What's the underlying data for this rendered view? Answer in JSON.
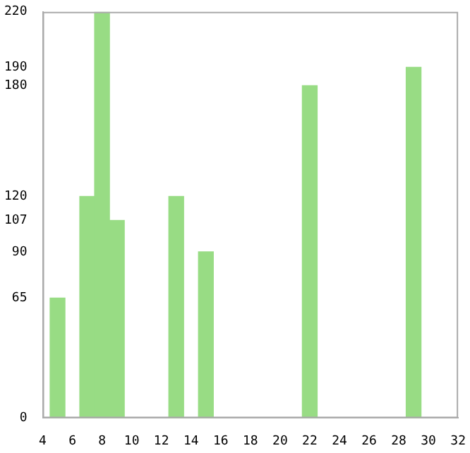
{
  "chart_data": {
    "type": "bar",
    "x": [
      5,
      7,
      8,
      9,
      13,
      15,
      22,
      29
    ],
    "values": [
      65,
      120,
      220,
      107,
      120,
      90,
      180,
      190
    ],
    "color": "#98dc84",
    "xlim": [
      4,
      32
    ],
    "xticks": [
      4,
      6,
      8,
      10,
      12,
      14,
      16,
      18,
      20,
      22,
      24,
      26,
      28,
      30,
      32
    ],
    "ylim": [
      0,
      220
    ],
    "yticks": [
      0,
      65,
      90,
      107,
      120,
      180,
      190,
      220
    ],
    "grid": false,
    "legend": false
  }
}
